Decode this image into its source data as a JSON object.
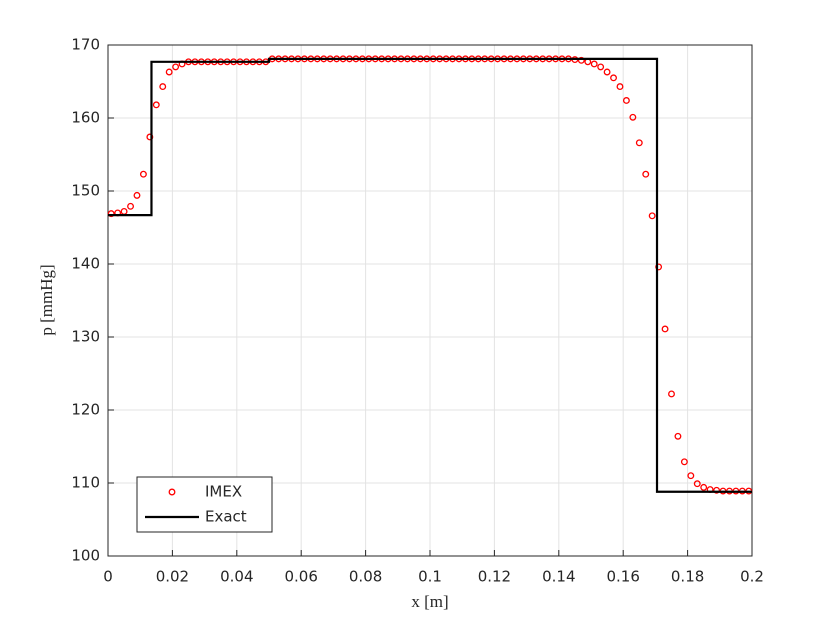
{
  "chart_data": {
    "type": "line",
    "xlabel": "x [m]",
    "ylabel": "p [mmHg]",
    "xlim": [
      0,
      0.2
    ],
    "ylim": [
      100,
      170
    ],
    "xticks": [
      0,
      0.02,
      0.04,
      0.06,
      0.08,
      0.1,
      0.12,
      0.14,
      0.16,
      0.18,
      0.2
    ],
    "yticks": [
      100,
      110,
      120,
      130,
      140,
      150,
      160,
      170
    ],
    "grid": true,
    "legend": "lower left",
    "series": [
      {
        "name": "IMEX",
        "color": "#ff0000",
        "marker": "circle",
        "x": [
          0.001,
          0.003,
          0.005,
          0.007,
          0.009,
          0.011,
          0.013,
          0.015,
          0.017,
          0.019,
          0.021,
          0.023,
          0.025,
          0.027,
          0.029,
          0.031,
          0.033,
          0.035,
          0.037,
          0.039,
          0.041,
          0.043,
          0.045,
          0.047,
          0.049,
          0.051,
          0.053,
          0.055,
          0.057,
          0.059,
          0.061,
          0.063,
          0.065,
          0.067,
          0.069,
          0.071,
          0.073,
          0.075,
          0.077,
          0.079,
          0.081,
          0.083,
          0.085,
          0.087,
          0.089,
          0.091,
          0.093,
          0.095,
          0.097,
          0.099,
          0.101,
          0.103,
          0.105,
          0.107,
          0.109,
          0.111,
          0.113,
          0.115,
          0.117,
          0.119,
          0.121,
          0.123,
          0.125,
          0.127,
          0.129,
          0.131,
          0.133,
          0.135,
          0.137,
          0.139,
          0.141,
          0.143,
          0.145,
          0.147,
          0.149,
          0.151,
          0.153,
          0.155,
          0.157,
          0.159,
          0.161,
          0.163,
          0.165,
          0.167,
          0.169,
          0.171,
          0.173,
          0.175,
          0.177,
          0.179,
          0.181,
          0.183,
          0.185,
          0.187,
          0.189,
          0.191,
          0.193,
          0.195,
          0.197,
          0.199
        ],
        "values": [
          146.9,
          147.0,
          147.2,
          147.9,
          149.4,
          152.3,
          157.4,
          161.8,
          164.3,
          166.3,
          167.0,
          167.4,
          167.7,
          167.7,
          167.7,
          167.7,
          167.7,
          167.7,
          167.7,
          167.7,
          167.7,
          167.7,
          167.7,
          167.7,
          167.7,
          168.1,
          168.1,
          168.1,
          168.1,
          168.1,
          168.1,
          168.1,
          168.1,
          168.1,
          168.1,
          168.1,
          168.1,
          168.1,
          168.1,
          168.1,
          168.1,
          168.1,
          168.1,
          168.1,
          168.1,
          168.1,
          168.1,
          168.1,
          168.1,
          168.1,
          168.1,
          168.1,
          168.1,
          168.1,
          168.1,
          168.1,
          168.1,
          168.1,
          168.1,
          168.1,
          168.1,
          168.1,
          168.1,
          168.1,
          168.1,
          168.1,
          168.1,
          168.1,
          168.1,
          168.1,
          168.1,
          168.1,
          168.0,
          167.9,
          167.7,
          167.4,
          167.0,
          166.3,
          165.5,
          164.3,
          162.4,
          160.1,
          156.6,
          152.3,
          146.6,
          139.6,
          131.1,
          122.2,
          116.4,
          112.9,
          111.0,
          109.9,
          109.4,
          109.1,
          109.0,
          108.9,
          108.9,
          108.9,
          108.9,
          108.9
        ]
      },
      {
        "name": "Exact",
        "color": "#000000",
        "marker": "none",
        "x": [
          0,
          0.0135,
          0.0135,
          0.05,
          0.05,
          0.1705,
          0.1705,
          0.2
        ],
        "values": [
          146.7,
          146.7,
          167.7,
          167.7,
          168.1,
          168.1,
          108.8,
          108.8
        ]
      }
    ]
  }
}
